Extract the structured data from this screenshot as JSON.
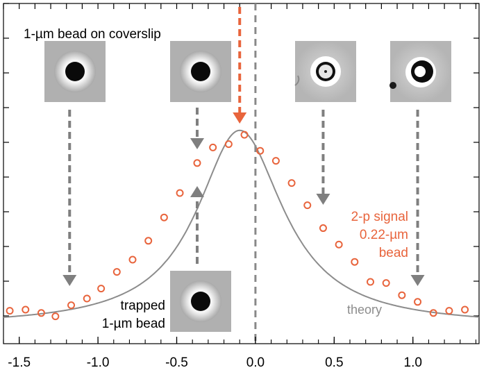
{
  "colors": {
    "signal": "#e8643c",
    "theory": "#8c8c8c",
    "arrow_gray": "#7f7f7f",
    "arrow_orange": "#e8643c",
    "axis": "#000000",
    "vline": "#888888"
  },
  "annotations": {
    "coverslip_label": "1-µm bead on coverslip",
    "trapped_label_1": "trapped",
    "trapped_label_2": "1-µm bead",
    "signal_label_1": "2-p signal",
    "signal_label_2": "0.22-µm",
    "signal_label_3": "bead",
    "theory_label": "theory"
  },
  "images": [
    {
      "name": "bead-image-1",
      "style": "dark",
      "x_data": -1.18
    },
    {
      "name": "bead-image-2",
      "style": "dark",
      "x_data": -0.37
    },
    {
      "name": "bead-image-3",
      "style": "ring",
      "x_data": 0.43
    },
    {
      "name": "bead-image-4",
      "style": "ring-offset",
      "x_data": 1.03
    },
    {
      "name": "trapped-bead-image",
      "style": "dark",
      "x_data": -0.37
    }
  ],
  "chart_data": {
    "type": "scatter",
    "xlim": [
      -1.6,
      1.42
    ],
    "ylim": [
      0,
      1.0
    ],
    "x_ticks": [
      -1.5,
      -1.0,
      -0.5,
      0.0,
      0.5,
      1.0
    ],
    "x_tick_labels": [
      "-1.5",
      "-1.0",
      "-0.5",
      "0.0",
      "0.5",
      "1.0"
    ],
    "y_tick_labels": [],
    "grid": false,
    "series": [
      {
        "name": "2-p signal 0.22-µm bead",
        "kind": "points",
        "x": [
          -1.56,
          -1.46,
          -1.36,
          -1.27,
          -1.17,
          -1.07,
          -0.98,
          -0.88,
          -0.78,
          -0.68,
          -0.58,
          -0.48,
          -0.37,
          -0.27,
          -0.17,
          -0.07,
          0.03,
          0.13,
          0.23,
          0.33,
          0.43,
          0.53,
          0.63,
          0.73,
          0.83,
          0.93,
          1.03,
          1.13,
          1.23,
          1.33
        ],
        "y": [
          0.07,
          0.075,
          0.06,
          0.045,
          0.095,
          0.125,
          0.17,
          0.245,
          0.3,
          0.385,
          0.49,
          0.6,
          0.735,
          0.805,
          0.82,
          0.862,
          0.79,
          0.745,
          0.645,
          0.545,
          0.442,
          0.368,
          0.29,
          0.2,
          0.195,
          0.14,
          0.11,
          0.06,
          0.07,
          0.075
        ]
      },
      {
        "name": "theory",
        "kind": "line",
        "center": -0.1,
        "peak": 0.882,
        "gamma": 0.32,
        "gamma_left": 0.33,
        "gamma_right": 0.34,
        "baseline": 0.0
      }
    ],
    "vertical_line_x": 0.0
  }
}
